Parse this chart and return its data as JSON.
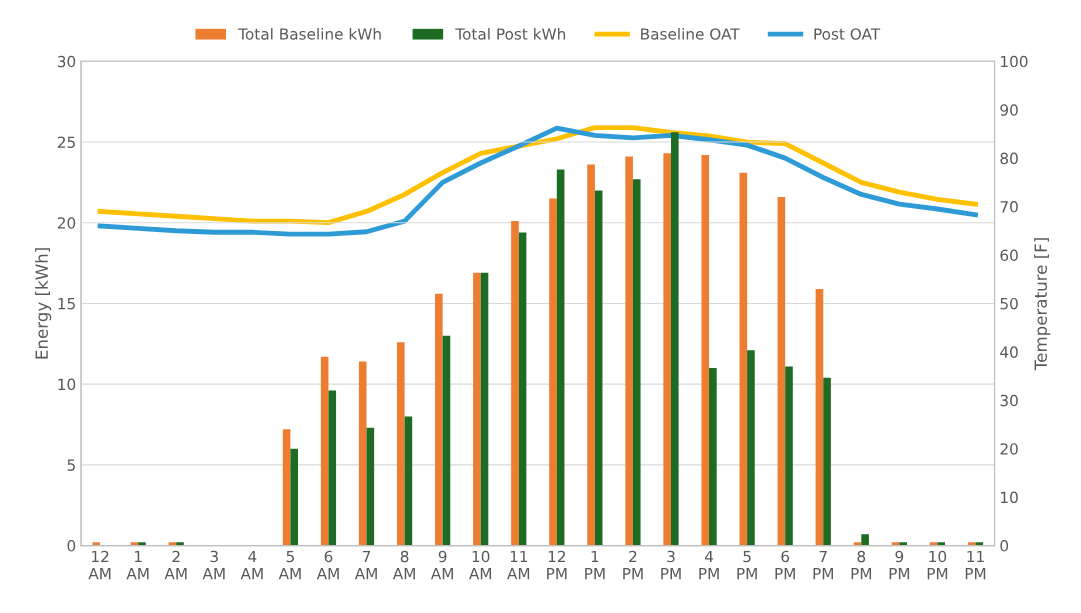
{
  "chart_data": {
    "type": "bar",
    "categories": [
      "12\nAM",
      "1\nAM",
      "2\nAM",
      "3\nAM",
      "4\nAM",
      "5\nAM",
      "6\nAM",
      "7\nAM",
      "8\nAM",
      "9\nAM",
      "10\nAM",
      "11\nAM",
      "12\nPM",
      "1\nPM",
      "2\nPM",
      "3\nPM",
      "4\nPM",
      "5\nPM",
      "6\nPM",
      "7\nPM",
      "8\nPM",
      "9\nPM",
      "10\nPM",
      "11\nPM"
    ],
    "ylabel": "Energy [kWh]",
    "y2label": "Temperature [F]",
    "ylim": [
      0,
      30
    ],
    "yticks": [
      0,
      5,
      10,
      15,
      20,
      25,
      30
    ],
    "y2lim": [
      0,
      100
    ],
    "y2ticks": [
      0,
      10,
      20,
      30,
      40,
      50,
      60,
      70,
      80,
      90,
      100
    ],
    "grid": "y",
    "legend": "top",
    "series": [
      {
        "name": "Total Baseline kWh",
        "color": "#ed7d31",
        "values": [
          0.2,
          0.2,
          0.2,
          0,
          0,
          7.2,
          11.7,
          11.4,
          12.6,
          15.6,
          16.9,
          20.1,
          21.5,
          23.6,
          24.1,
          24.3,
          24.2,
          23.1,
          21.6,
          15.9,
          0.2,
          0.2,
          0.2,
          0.2
        ]
      },
      {
        "name": "Total Post kWh",
        "color": "#1e6b24",
        "values": [
          0,
          0.2,
          0.2,
          0,
          0,
          6.0,
          9.6,
          7.3,
          8.0,
          13.0,
          16.9,
          19.4,
          23.3,
          22.0,
          22.7,
          25.6,
          11.0,
          12.1,
          11.1,
          10.4,
          0.7,
          0.2,
          0.2,
          0.2
        ]
      },
      {
        "name": "Baseline OAT",
        "type": "line",
        "axis": "y2",
        "color": "#ffc000",
        "values": [
          69,
          68.5,
          68,
          67.5,
          67,
          67,
          66.7,
          69,
          72.5,
          77,
          81,
          82.5,
          84,
          86.3,
          86.3,
          85.3,
          84.6,
          83.3,
          83,
          79,
          75,
          73,
          71.5,
          70.5
        ]
      },
      {
        "name": "Post OAT",
        "type": "line",
        "axis": "y2",
        "color": "#2e9bd6",
        "values": [
          66,
          65.5,
          65,
          64.7,
          64.7,
          64.3,
          64.3,
          64.8,
          67,
          75,
          79,
          82.5,
          86.2,
          84.7,
          84.2,
          84.7,
          83.8,
          82.7,
          80,
          76,
          72.5,
          70.5,
          69.5,
          68.3
        ]
      }
    ]
  }
}
